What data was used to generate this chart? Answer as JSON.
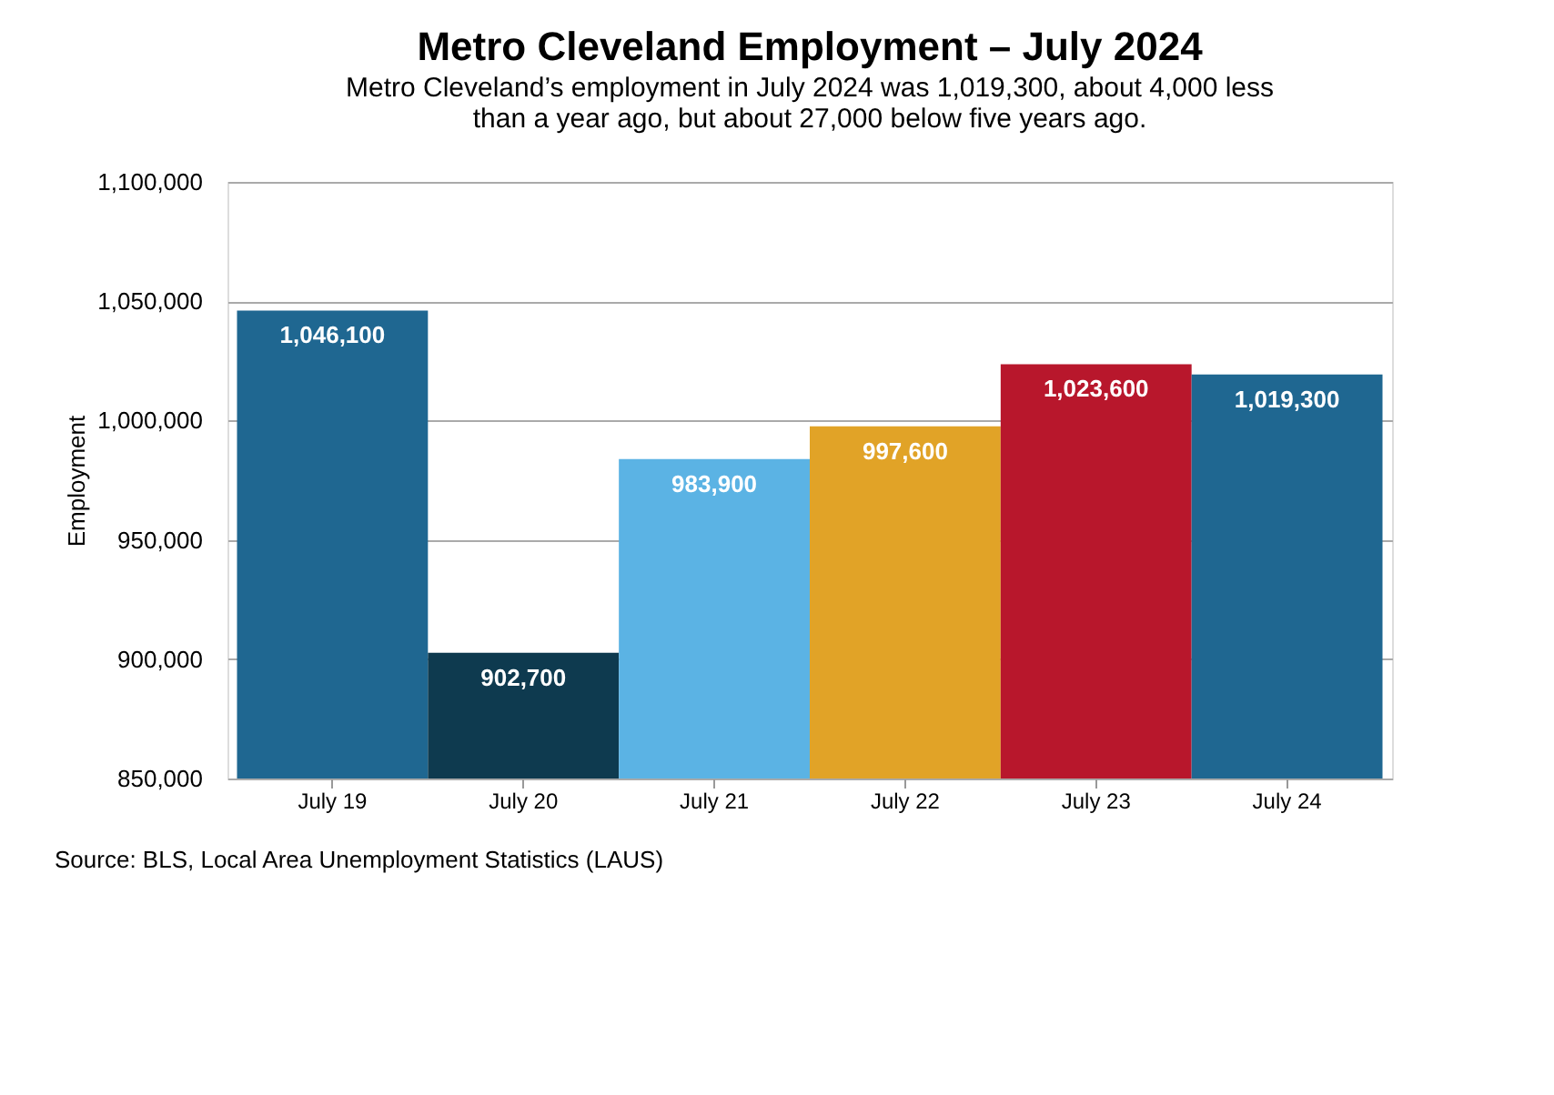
{
  "chart_data": {
    "type": "bar",
    "title": "Metro Cleveland Employment – July 2024",
    "subtitle": "Metro Cleveland’s employment in July 2024 was 1,019,300, about 4,000 less\nthan a year ago, but about 27,000 below five years ago.",
    "ylabel": "Employment",
    "categories": [
      "July 19",
      "July 20",
      "July 21",
      "July 22",
      "July 23",
      "July 24"
    ],
    "values": [
      1046100,
      902700,
      983900,
      997600,
      1023600,
      1019300
    ],
    "colors": [
      "#1f6791",
      "#0e3a4f",
      "#5bb3e4",
      "#e1a327",
      "#b8172c",
      "#1f6791"
    ],
    "value_labels": [
      "1,046,100",
      "902,700",
      "983,900",
      "997,600",
      "1,023,600",
      "1,019,300"
    ],
    "ylim": [
      850000,
      1100000
    ],
    "yticks": [
      {
        "value": 850000,
        "label": "850,000"
      },
      {
        "value": 900000,
        "label": "900,000"
      },
      {
        "value": 950000,
        "label": "950,000"
      },
      {
        "value": 1000000,
        "label": "1,000,000"
      },
      {
        "value": 1050000,
        "label": "1,050,000"
      },
      {
        "value": 1100000,
        "label": "1,100,000"
      }
    ],
    "grid": "y",
    "annotations": [
      "Source: BLS, Local Area Unemployment Statistics (LAUS)"
    ]
  }
}
